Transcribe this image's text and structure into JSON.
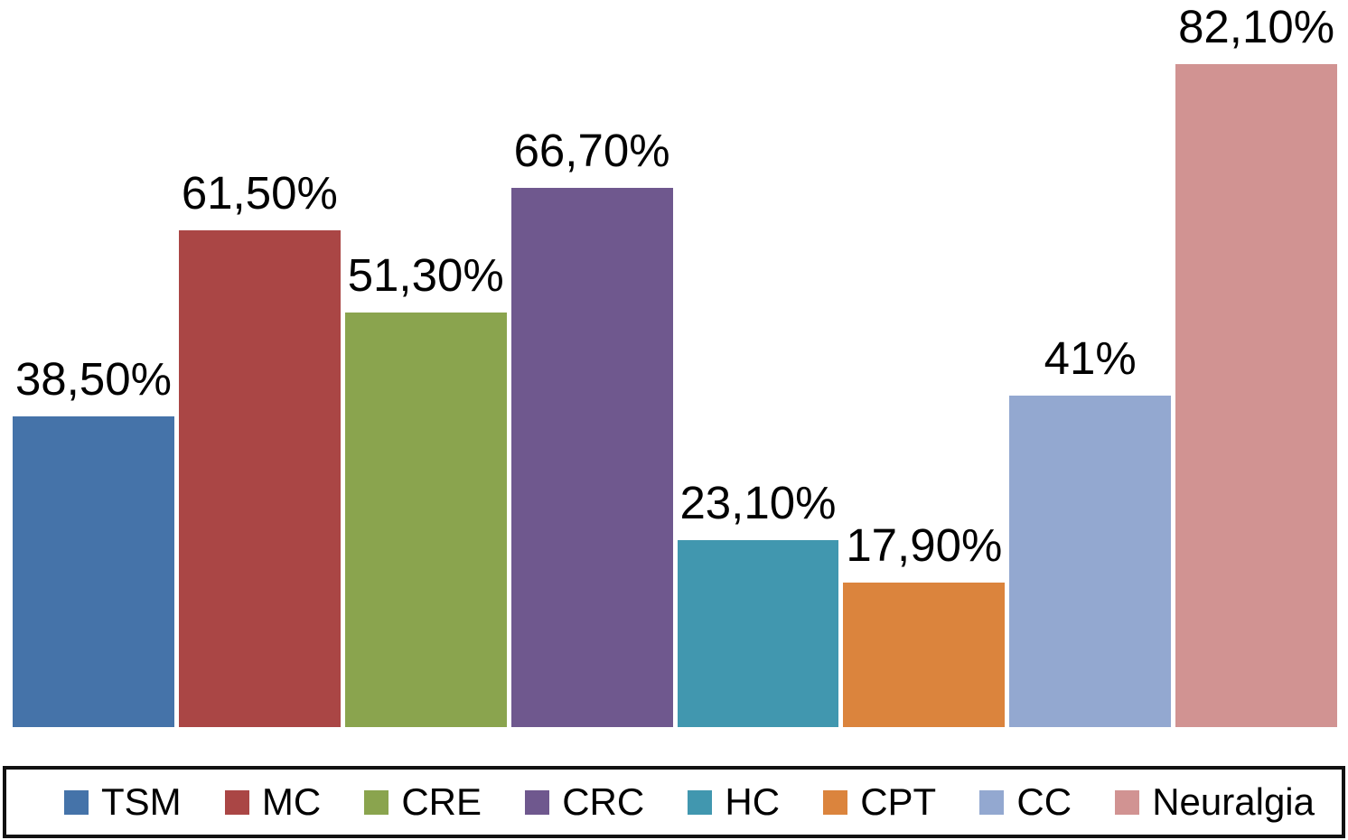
{
  "chart_data": {
    "type": "bar",
    "categories": [
      "TSM",
      "MC",
      "CRE",
      "CRC",
      "HC",
      "CPT",
      "CC",
      "Neuralgia"
    ],
    "values": [
      38.5,
      61.5,
      51.3,
      66.7,
      23.1,
      17.9,
      41,
      82.1
    ],
    "value_labels": [
      "38,50%",
      "61,50%",
      "51,30%",
      "66,70%",
      "23,10%",
      "17,90%",
      "41%",
      "82,10%"
    ],
    "colors": [
      "#4573A9",
      "#AA4645",
      "#8AA44E",
      "#6F588E",
      "#4197AF",
      "#DB843D",
      "#93A8D0",
      "#D19392"
    ],
    "title": "",
    "xlabel": "",
    "ylabel": "",
    "ylim": [
      0,
      90
    ],
    "grid": false,
    "legend_position": "bottom",
    "background_color": "#ffffff",
    "label_color": "#000000",
    "legend_border_color": "#111111"
  }
}
